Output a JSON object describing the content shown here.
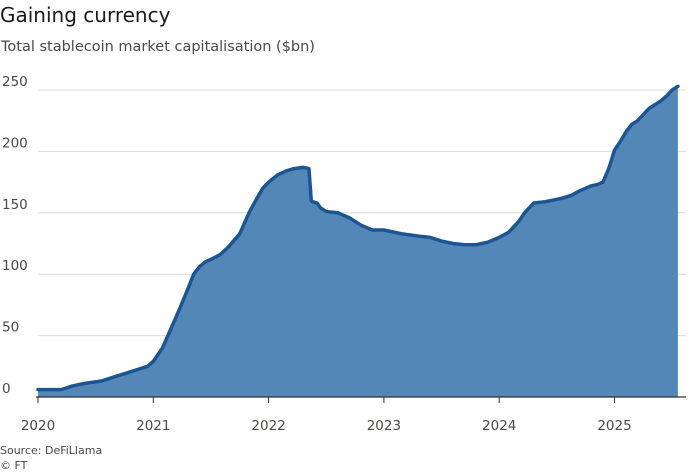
{
  "header": {
    "title": "Gaining currency",
    "subtitle": "Total stablecoin market capitalisation ($bn)"
  },
  "footer": {
    "source": "Source: DeFiLlama",
    "credit": "© FT"
  },
  "colors": {
    "area_fill": "#5387b7",
    "area_line": "#1c5592",
    "grid": "#e0dcd8",
    "baseline": "#33302e",
    "text": "#4d4845"
  },
  "chart_data": {
    "type": "area",
    "title": "Gaining currency",
    "subtitle": "Total stablecoin market capitalisation ($bn)",
    "xlabel": "",
    "ylabel": "",
    "xlim": [
      2020.0,
      2025.6
    ],
    "ylim": [
      0,
      250
    ],
    "yticks": [
      0,
      50,
      100,
      150,
      200,
      250
    ],
    "ytick_labels": [
      "0",
      "50",
      "100",
      "150",
      "200",
      "250"
    ],
    "xticks": [
      2020,
      2021,
      2022,
      2023,
      2024,
      2025
    ],
    "xtick_labels": [
      "2020",
      "2021",
      "2022",
      "2023",
      "2024",
      "2025"
    ],
    "grid": true,
    "legend": "none",
    "series": [
      {
        "x": [
          2020.0,
          2020.2,
          2020.3,
          2020.4,
          2020.55,
          2020.65,
          2020.75,
          2020.85,
          2020.95,
          2021.0,
          2021.08,
          2021.15,
          2021.22,
          2021.3,
          2021.35,
          2021.4,
          2021.45,
          2021.52,
          2021.58,
          2021.65,
          2021.75,
          2021.83,
          2021.9,
          2021.95,
          2022.0,
          2022.08,
          2022.15,
          2022.22,
          2022.3,
          2022.35,
          2022.37,
          2022.38,
          2022.42,
          2022.45,
          2022.5,
          2022.6,
          2022.7,
          2022.8,
          2022.9,
          2023.0,
          2023.15,
          2023.3,
          2023.4,
          2023.5,
          2023.6,
          2023.7,
          2023.8,
          2023.9,
          2024.0,
          2024.08,
          2024.12,
          2024.17,
          2024.22,
          2024.3,
          2024.4,
          2024.5,
          2024.55,
          2024.62,
          2024.7,
          2024.8,
          2024.85,
          2024.9,
          2024.95,
          2025.0,
          2025.05,
          2025.1,
          2025.15,
          2025.2,
          2025.25,
          2025.3,
          2025.35,
          2025.4,
          2025.45,
          2025.5,
          2025.55
        ],
        "y": [
          6,
          6,
          9,
          11,
          13,
          16,
          19,
          22,
          25,
          29,
          40,
          55,
          70,
          88,
          100,
          106,
          110,
          113,
          116,
          122,
          133,
          150,
          162,
          170,
          175,
          181,
          184,
          186,
          187,
          186,
          160,
          159,
          158,
          154,
          151,
          150,
          146,
          140,
          136,
          136,
          133,
          131,
          130,
          127,
          125,
          124,
          124,
          126,
          130,
          134,
          138,
          143,
          150,
          158,
          159,
          161,
          162,
          164,
          168,
          172,
          173,
          175,
          186,
          201,
          208,
          216,
          222,
          225,
          230,
          235,
          238,
          241,
          245,
          250,
          253
        ]
      }
    ]
  }
}
